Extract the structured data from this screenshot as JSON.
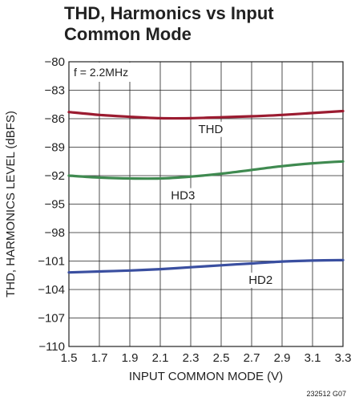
{
  "chart_data": {
    "type": "line",
    "title": "THD, Harmonics vs Input Common Mode",
    "xlabel": "INPUT COMMON MODE (V)",
    "ylabel": "THD, HARMONICS LEVEL (dBFS)",
    "xlim": [
      1.5,
      3.3
    ],
    "ylim": [
      -110,
      -80
    ],
    "xticks": [
      "1.5",
      "1.7",
      "1.9",
      "2.1",
      "2.3",
      "2.5",
      "2.7",
      "2.9",
      "3.1",
      "3.3"
    ],
    "yticks": [
      "−80",
      "−83",
      "−86",
      "−89",
      "−92",
      "−95",
      "−98",
      "−101",
      "−104",
      "−107",
      "−110"
    ],
    "grid": true,
    "annotation": "f = 2.2MHz",
    "figure_code": "232512 G07",
    "series": [
      {
        "name": "THD",
        "color": "#9b1b30",
        "x": [
          1.5,
          1.7,
          1.9,
          2.1,
          2.3,
          2.5,
          2.7,
          2.9,
          3.1,
          3.3
        ],
        "y": [
          -85.3,
          -85.6,
          -85.8,
          -85.95,
          -85.95,
          -85.85,
          -85.75,
          -85.6,
          -85.4,
          -85.2
        ],
        "label_pos": [
          2.35,
          -87.5
        ]
      },
      {
        "name": "HD3",
        "color": "#3f8a50",
        "x": [
          1.5,
          1.7,
          1.9,
          2.1,
          2.3,
          2.5,
          2.7,
          2.9,
          3.1,
          3.3
        ],
        "y": [
          -92.0,
          -92.2,
          -92.3,
          -92.3,
          -92.1,
          -91.8,
          -91.4,
          -91.0,
          -90.7,
          -90.5
        ],
        "label_pos": [
          2.17,
          -94.5
        ]
      },
      {
        "name": "HD2",
        "color": "#3a4fa0",
        "x": [
          1.5,
          1.7,
          1.9,
          2.1,
          2.3,
          2.5,
          2.7,
          2.9,
          3.1,
          3.3
        ],
        "y": [
          -102.2,
          -102.1,
          -102.0,
          -101.85,
          -101.65,
          -101.45,
          -101.25,
          -101.05,
          -100.95,
          -100.9
        ],
        "label_pos": [
          2.68,
          -103.4
        ]
      }
    ]
  }
}
